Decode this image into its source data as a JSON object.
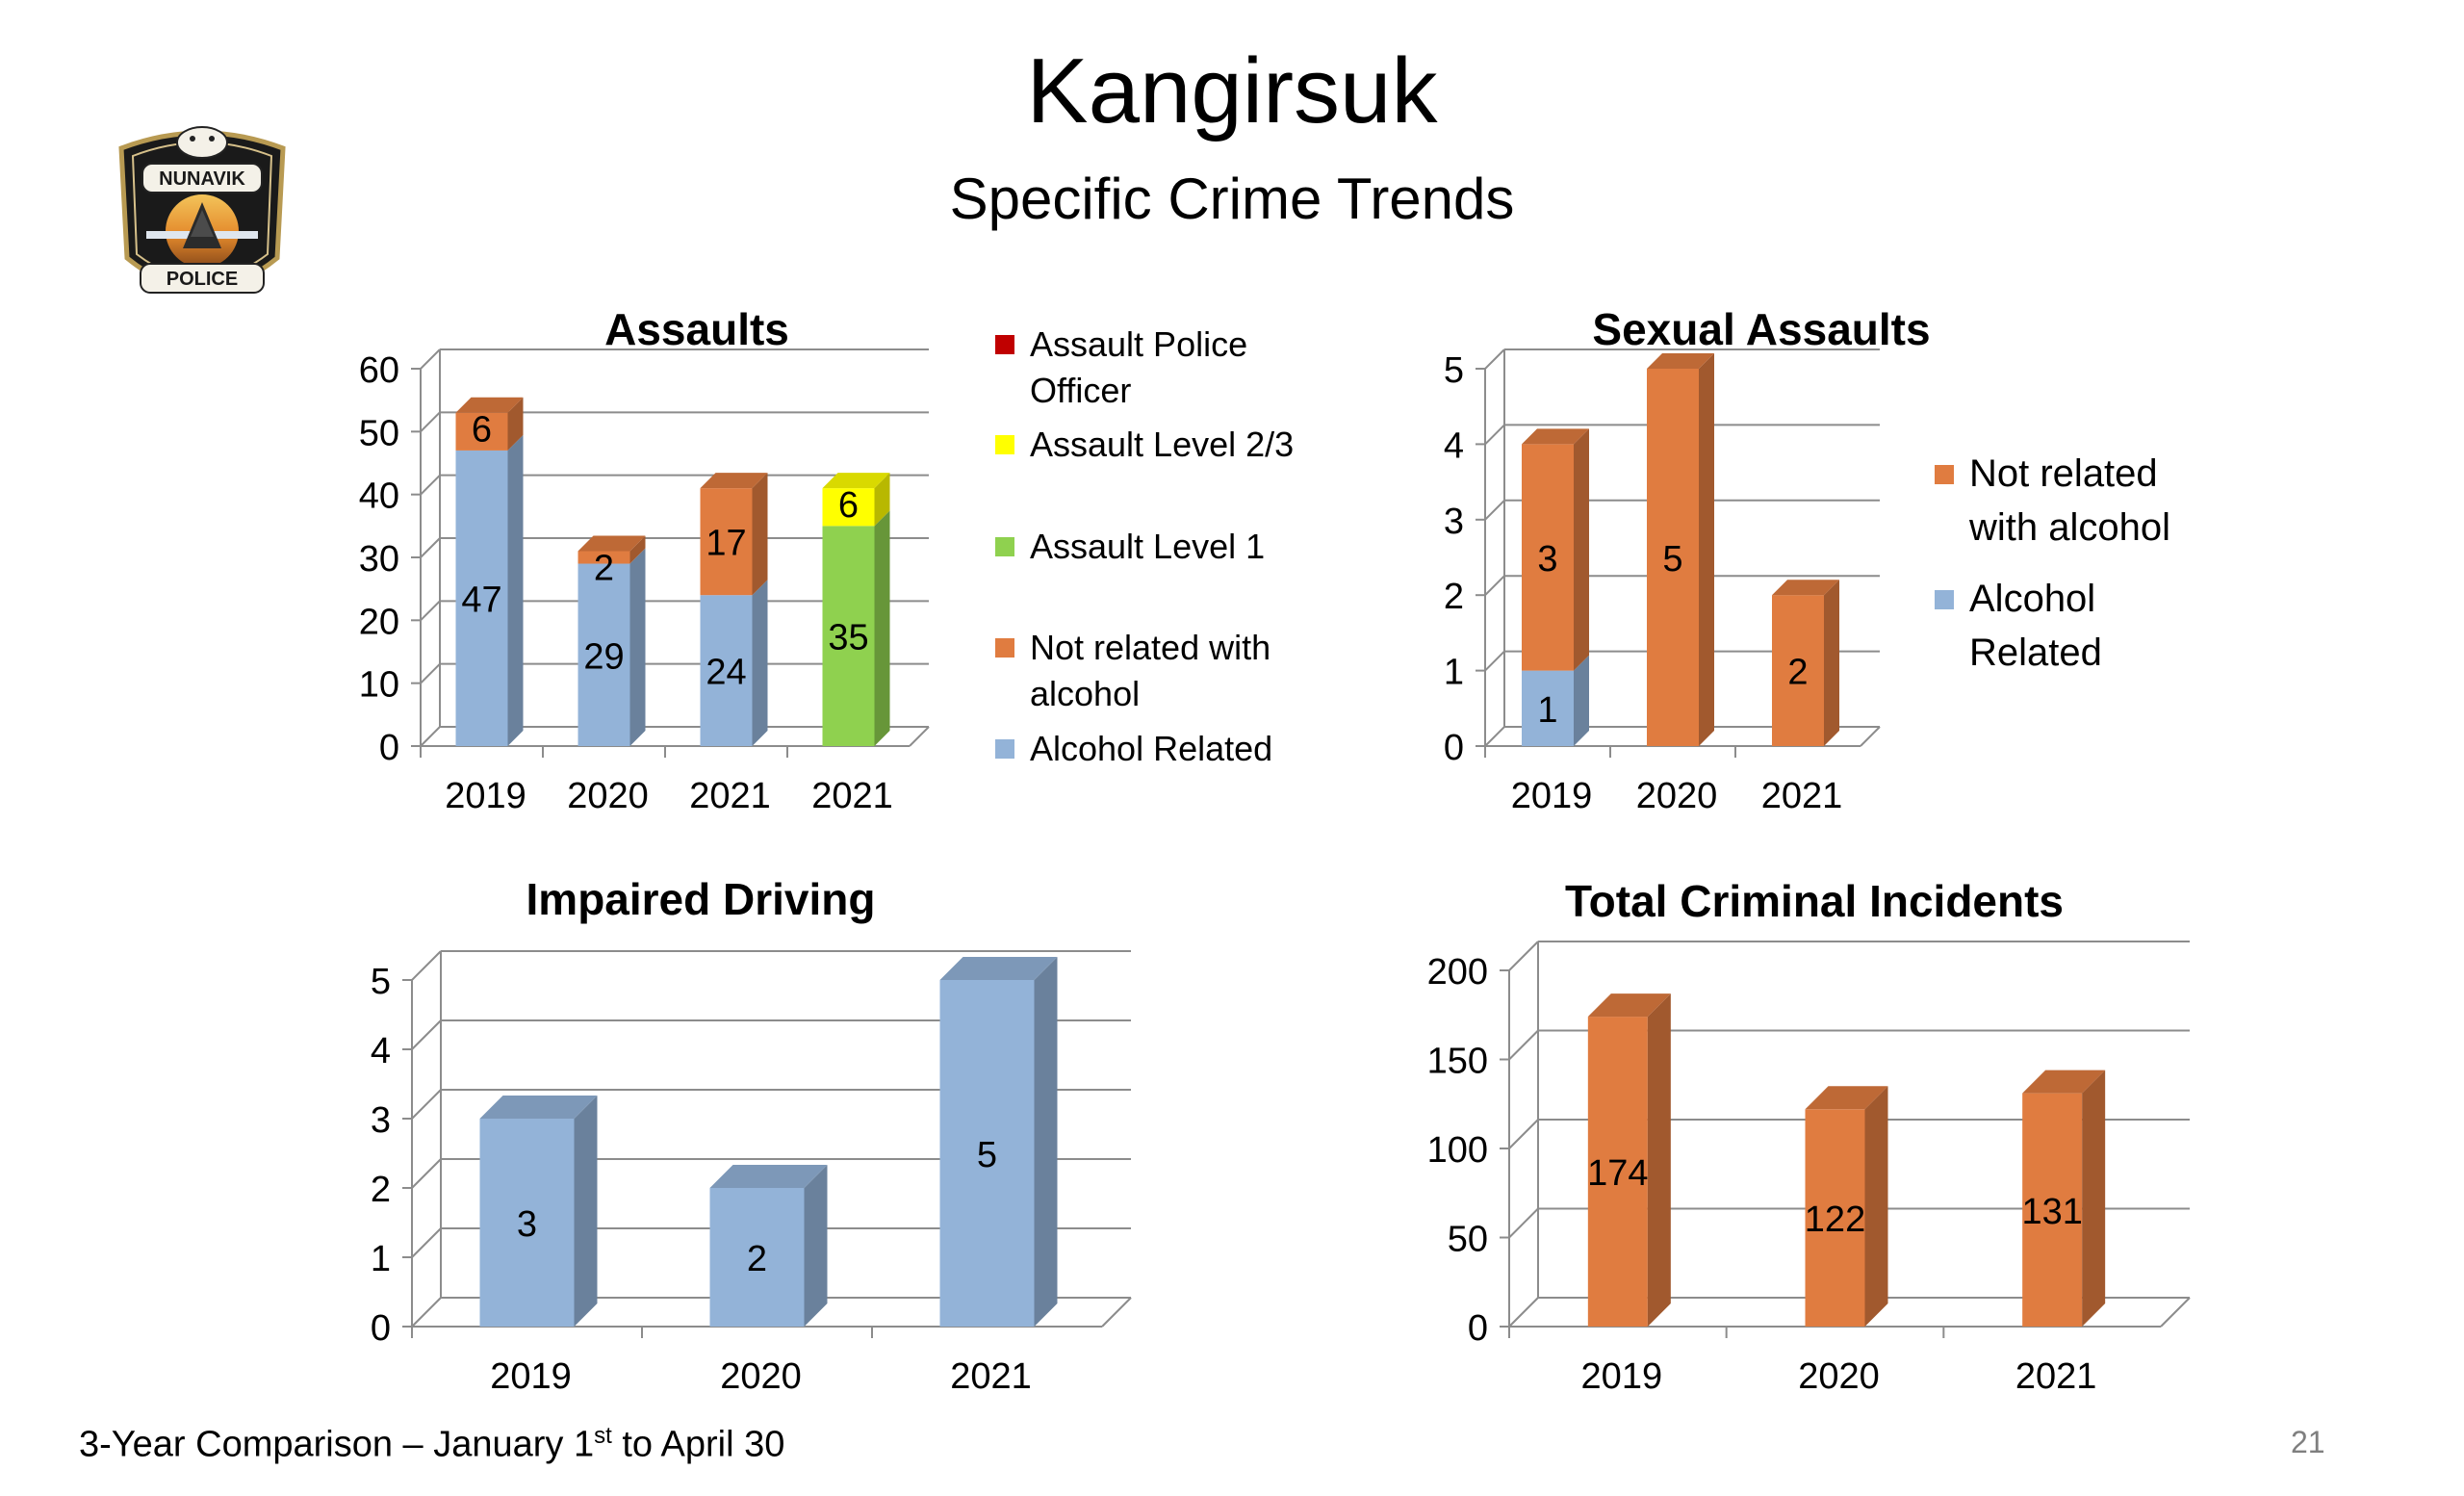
{
  "page": {
    "title": "Kangirsuk",
    "subtitle": "Specific Crime Trends",
    "footer": {
      "prefix": "3-Year Comparison – January 1",
      "sup": "st",
      "suffix": " to April 30"
    },
    "page_number": "21",
    "logo": {
      "top_text": "NUNAVIK",
      "bottom_text": "POLICE"
    }
  },
  "colors": {
    "alcohol": "#93b3d8",
    "not_alcohol": "#e07c40",
    "level1": "#8fd14f",
    "level23": "#ffff00",
    "police": "#c00000"
  },
  "chart_data": [
    {
      "type": "bar",
      "stacked": true,
      "title": "Assaults",
      "categories": [
        "2019",
        "2020",
        "2021",
        "2021"
      ],
      "ylim": [
        0,
        60
      ],
      "yticks": [
        "0",
        "10",
        "20",
        "30",
        "40",
        "50",
        "60"
      ],
      "legend_position": "right",
      "series": [
        {
          "name": "Alcohol Related",
          "color": "#93b3d8",
          "values": [
            47,
            29,
            24,
            0
          ],
          "labels": [
            "47",
            "29",
            "24",
            ""
          ]
        },
        {
          "name": "Not related with alcohol",
          "color": "#e07c40",
          "values": [
            6,
            2,
            17,
            0
          ],
          "labels": [
            "6",
            "2",
            "17",
            ""
          ]
        },
        {
          "name": "Assault Level 1",
          "color": "#8fd14f",
          "values": [
            0,
            0,
            0,
            35
          ],
          "labels": [
            "",
            "",
            "",
            "35"
          ]
        },
        {
          "name": "Assault Level 2/3",
          "color": "#ffff00",
          "values": [
            0,
            0,
            0,
            6
          ],
          "labels": [
            "",
            "",
            "",
            "6"
          ]
        },
        {
          "name": "Assault Police Officer",
          "color": "#c00000",
          "values": [
            0,
            0,
            0,
            0
          ],
          "labels": [
            "",
            "",
            "",
            ""
          ]
        }
      ],
      "legend": [
        {
          "lines": [
            "Assault Police",
            "Officer"
          ],
          "color": "#c00000"
        },
        {
          "lines": [
            "Assault Level 2/3"
          ],
          "color": "#ffff00"
        },
        {
          "lines": [
            "Assault Level 1"
          ],
          "color": "#8fd14f"
        },
        {
          "lines": [
            "Not related with",
            "alcohol"
          ],
          "color": "#e07c40"
        },
        {
          "lines": [
            "Alcohol Related"
          ],
          "color": "#93b3d8"
        }
      ]
    },
    {
      "type": "bar",
      "stacked": true,
      "title": "Sexual Assaults",
      "categories": [
        "2019",
        "2020",
        "2021"
      ],
      "ylim": [
        0,
        5
      ],
      "yticks": [
        "0",
        "1",
        "2",
        "3",
        "4",
        "5"
      ],
      "legend_position": "right",
      "series": [
        {
          "name": "Alcohol Related",
          "color": "#93b3d8",
          "values": [
            1,
            0,
            0
          ],
          "labels": [
            "1",
            "",
            ""
          ]
        },
        {
          "name": "Not related with alcohol",
          "color": "#e07c40",
          "values": [
            3,
            5,
            2
          ],
          "labels": [
            "3",
            "5",
            "2"
          ]
        }
      ],
      "legend": [
        {
          "lines": [
            "Not related",
            "with alcohol"
          ],
          "color": "#e07c40"
        },
        {
          "lines": [
            "Alcohol",
            "Related"
          ],
          "color": "#93b3d8"
        }
      ]
    },
    {
      "type": "bar",
      "title": "Impaired Driving",
      "categories": [
        "2019",
        "2020",
        "2021"
      ],
      "ylim": [
        0,
        5
      ],
      "yticks": [
        "0",
        "1",
        "2",
        "3",
        "4",
        "5"
      ],
      "series": [
        {
          "color": "#93b3d8",
          "values": [
            3,
            2,
            5
          ],
          "labels": [
            "3",
            "2",
            "5"
          ]
        }
      ]
    },
    {
      "type": "bar",
      "title": "Total Criminal Incidents",
      "categories": [
        "2019",
        "2020",
        "2021"
      ],
      "ylim": [
        0,
        200
      ],
      "yticks": [
        "0",
        "50",
        "100",
        "150",
        "200"
      ],
      "series": [
        {
          "color": "#e07c40",
          "values": [
            174,
            122,
            131
          ],
          "labels": [
            "174",
            "122",
            "131"
          ]
        }
      ]
    }
  ]
}
